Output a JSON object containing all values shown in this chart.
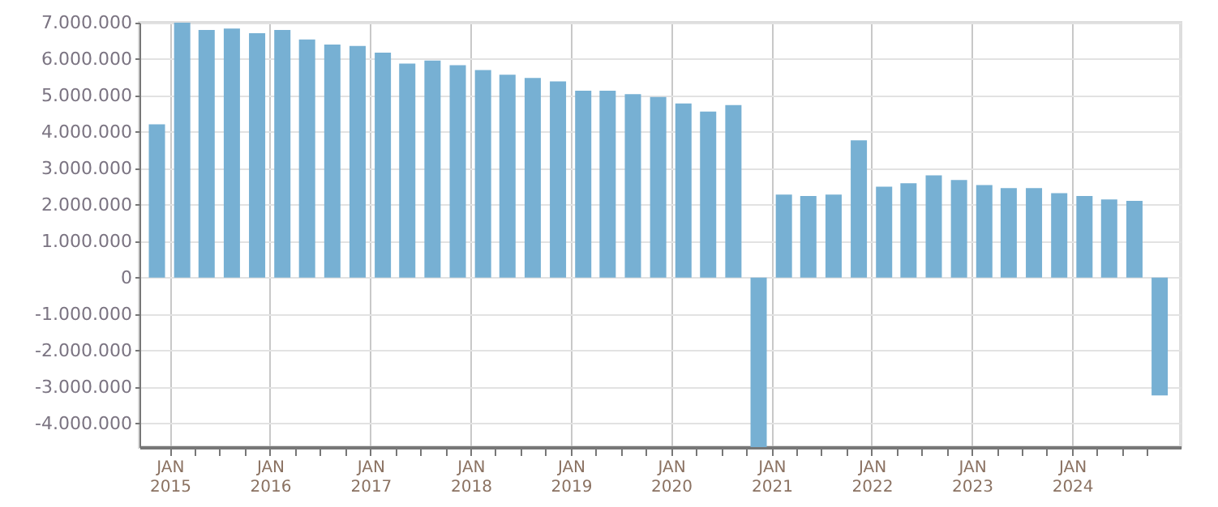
{
  "chart_data": {
    "type": "bar",
    "color": "#77b0d3",
    "grid": true,
    "x": [
      "2014-11-15",
      "2015-02-15",
      "2015-05-15",
      "2015-08-15",
      "2015-11-15",
      "2016-02-15",
      "2016-05-15",
      "2016-08-15",
      "2016-11-15",
      "2017-02-15",
      "2017-05-15",
      "2017-08-15",
      "2017-11-15",
      "2018-02-15",
      "2018-05-15",
      "2018-08-15",
      "2018-11-15",
      "2019-02-15",
      "2019-05-15",
      "2019-08-15",
      "2019-11-15",
      "2020-02-15",
      "2020-05-15",
      "2020-08-15",
      "2020-11-15",
      "2021-02-15",
      "2021-05-15",
      "2021-08-15",
      "2021-11-15",
      "2022-02-15",
      "2022-05-15",
      "2022-08-15",
      "2022-11-15",
      "2023-02-15",
      "2023-05-15",
      "2023-08-15",
      "2023-11-15",
      "2024-02-15",
      "2024-05-15",
      "2024-08-15",
      "2024-11-15"
    ],
    "values": [
      4210000,
      7000000,
      6800000,
      6840000,
      6710000,
      6800000,
      6540000,
      6400000,
      6360000,
      6180000,
      5880000,
      5960000,
      5830000,
      5700000,
      5570000,
      5480000,
      5390000,
      5130000,
      5130000,
      5040000,
      4960000,
      4780000,
      4560000,
      4740000,
      -4650000,
      2280000,
      2240000,
      2280000,
      3770000,
      2500000,
      2590000,
      2810000,
      2680000,
      2540000,
      2460000,
      2460000,
      2320000,
      2240000,
      2150000,
      2110000,
      -3230000
    ],
    "xlim": [
      "2014-10-12",
      "2025-01-01"
    ],
    "xticks": [
      {
        "value": "2015-01-01",
        "label": "JAN 2015"
      },
      {
        "value": "2015-04-01",
        "label": null
      },
      {
        "value": "2015-07-01",
        "label": null
      },
      {
        "value": "2015-10-01",
        "label": null
      },
      {
        "value": "2016-01-01",
        "label": "JAN 2016"
      },
      {
        "value": "2016-04-01",
        "label": null
      },
      {
        "value": "2016-07-01",
        "label": null
      },
      {
        "value": "2016-10-01",
        "label": null
      },
      {
        "value": "2017-01-01",
        "label": "JAN 2017"
      },
      {
        "value": "2017-04-01",
        "label": null
      },
      {
        "value": "2017-07-01",
        "label": null
      },
      {
        "value": "2017-10-01",
        "label": null
      },
      {
        "value": "2018-01-01",
        "label": "JAN 2018"
      },
      {
        "value": "2018-04-01",
        "label": null
      },
      {
        "value": "2018-07-01",
        "label": null
      },
      {
        "value": "2018-10-01",
        "label": null
      },
      {
        "value": "2019-01-01",
        "label": "JAN 2019"
      },
      {
        "value": "2019-04-01",
        "label": null
      },
      {
        "value": "2019-07-01",
        "label": null
      },
      {
        "value": "2019-10-01",
        "label": null
      },
      {
        "value": "2020-01-01",
        "label": "JAN 2020"
      },
      {
        "value": "2020-04-01",
        "label": null
      },
      {
        "value": "2020-07-01",
        "label": null
      },
      {
        "value": "2020-10-01",
        "label": null
      },
      {
        "value": "2021-01-01",
        "label": "JAN 2021"
      },
      {
        "value": "2021-04-01",
        "label": null
      },
      {
        "value": "2021-07-01",
        "label": null
      },
      {
        "value": "2021-10-01",
        "label": null
      },
      {
        "value": "2022-01-01",
        "label": "JAN 2022"
      },
      {
        "value": "2022-04-01",
        "label": null
      },
      {
        "value": "2022-07-01",
        "label": null
      },
      {
        "value": "2022-10-01",
        "label": null
      },
      {
        "value": "2023-01-01",
        "label": "JAN 2023"
      },
      {
        "value": "2023-04-01",
        "label": null
      },
      {
        "value": "2023-07-01",
        "label": null
      },
      {
        "value": "2023-10-01",
        "label": null
      },
      {
        "value": "2024-01-01",
        "label": "JAN 2024"
      },
      {
        "value": "2024-04-01",
        "label": null
      },
      {
        "value": "2024-07-01",
        "label": null
      },
      {
        "value": "2024-10-01",
        "label": null
      }
    ],
    "ylim": [
      -4650000,
      7000000
    ],
    "yticks": [
      {
        "value": -4000000,
        "label": "-4.000.000"
      },
      {
        "value": -3000000,
        "label": "-3.000.000"
      },
      {
        "value": -2000000,
        "label": "-2.000.000"
      },
      {
        "value": -1000000,
        "label": "-1.000.000"
      },
      {
        "value": 0,
        "label": "0"
      },
      {
        "value": 1000000,
        "label": "1.000.000"
      },
      {
        "value": 2000000,
        "label": "2.000.000"
      },
      {
        "value": 3000000,
        "label": "3.000.000"
      },
      {
        "value": 4000000,
        "label": "4.000.000"
      },
      {
        "value": 5000000,
        "label": "5.000.000"
      },
      {
        "value": 6000000,
        "label": "6.000.000"
      },
      {
        "value": 7000000,
        "label": "7.000.000"
      }
    ]
  }
}
